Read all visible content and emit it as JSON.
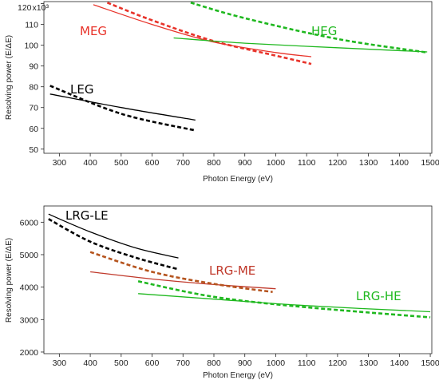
{
  "chart_data": [
    {
      "type": "line",
      "ylabel": "Resolving power (E/ΔE)",
      "xlabel": "Photon Energy (eV)",
      "xlim": [
        250,
        1505
      ],
      "ylim": [
        48,
        121
      ],
      "y_multiplier_label": "x10³",
      "x_ticks": [
        "300",
        "400",
        "500",
        "600",
        "700",
        "800",
        "900",
        "1000",
        "1100",
        "1200",
        "1300",
        "1400",
        "1500"
      ],
      "y_ticks": [
        "50",
        "60",
        "70",
        "80",
        "90",
        "100",
        "110",
        "120"
      ],
      "grid": false,
      "series": [
        {
          "name": "LEG",
          "color": "#000000",
          "style": "solid",
          "x": [
            270,
            500,
            740
          ],
          "y": [
            76.5,
            70,
            64
          ]
        },
        {
          "name": "LEG",
          "color": "#000000",
          "style": "dashed",
          "x": [
            270,
            500,
            740
          ],
          "y": [
            80.5,
            67,
            59
          ]
        },
        {
          "name": "MEG",
          "color": "#e8332a",
          "style": "solid",
          "x": [
            410,
            600,
            800,
            1000,
            1115
          ],
          "y": [
            119.5,
            110,
            101.5,
            96.5,
            94.5
          ]
        },
        {
          "name": "MEG",
          "color": "#e8332a",
          "style": "dashed",
          "x": [
            455,
            600,
            800,
            1000,
            1115
          ],
          "y": [
            120.5,
            112,
            102,
            95,
            91
          ]
        },
        {
          "name": "HEG",
          "color": "#1fb81f",
          "style": "solid",
          "x": [
            670,
            900,
            1200,
            1490
          ],
          "y": [
            103.5,
            101,
            98.8,
            96.8
          ]
        },
        {
          "name": "HEG",
          "color": "#1fb81f",
          "style": "dashed",
          "x": [
            725,
            900,
            1200,
            1490
          ],
          "y": [
            120.5,
            113,
            103,
            96.5
          ]
        }
      ],
      "labels": [
        {
          "text": "LEG",
          "color": "#000000"
        },
        {
          "text": "MEG",
          "color": "#e8332a"
        },
        {
          "text": "HEG",
          "color": "#1fb81f"
        }
      ]
    },
    {
      "type": "line",
      "ylabel": "Resolving power (E/ΔE)",
      "xlabel": "Photon Energy (eV)",
      "xlim": [
        250,
        1505
      ],
      "ylim": [
        1950,
        6500
      ],
      "x_ticks": [
        "300",
        "400",
        "500",
        "600",
        "700",
        "800",
        "900",
        "1000",
        "1100",
        "1200",
        "1300",
        "1400",
        "1500"
      ],
      "y_ticks": [
        "2000",
        "3000",
        "4000",
        "5000",
        "6000"
      ],
      "grid": false,
      "series": [
        {
          "name": "LRG-LE",
          "color": "#000000",
          "style": "solid",
          "x": [
            265,
            400,
            550,
            685
          ],
          "y": [
            6250,
            5700,
            5200,
            4900
          ]
        },
        {
          "name": "LRG-LE",
          "color": "#000000",
          "style": "dashed",
          "x": [
            265,
            400,
            550,
            685
          ],
          "y": [
            6100,
            5400,
            4900,
            4550
          ]
        },
        {
          "name": "LRG-ME",
          "color": "#c0392b",
          "style": "solid",
          "x": [
            400,
            600,
            800,
            1000
          ],
          "y": [
            4470,
            4250,
            4080,
            3950
          ]
        },
        {
          "name": "LRG-ME",
          "color": "#b5541e",
          "style": "dashed",
          "x": [
            400,
            600,
            800,
            990
          ],
          "y": [
            5080,
            4470,
            4100,
            3850
          ]
        },
        {
          "name": "LRG-HE",
          "color": "#1fb81f",
          "style": "solid",
          "x": [
            555,
            800,
            1100,
            1500
          ],
          "y": [
            3800,
            3630,
            3430,
            3240
          ]
        },
        {
          "name": "LRG-HE",
          "color": "#1fb81f",
          "style": "dashed",
          "x": [
            555,
            800,
            1100,
            1500
          ],
          "y": [
            4180,
            3700,
            3380,
            3070
          ]
        }
      ],
      "labels": [
        {
          "text": "LRG-LE",
          "color": "#000000"
        },
        {
          "text": "LRG-ME",
          "color": "#c0392b"
        },
        {
          "text": "LRG-HE",
          "color": "#1fb81f"
        }
      ]
    }
  ]
}
